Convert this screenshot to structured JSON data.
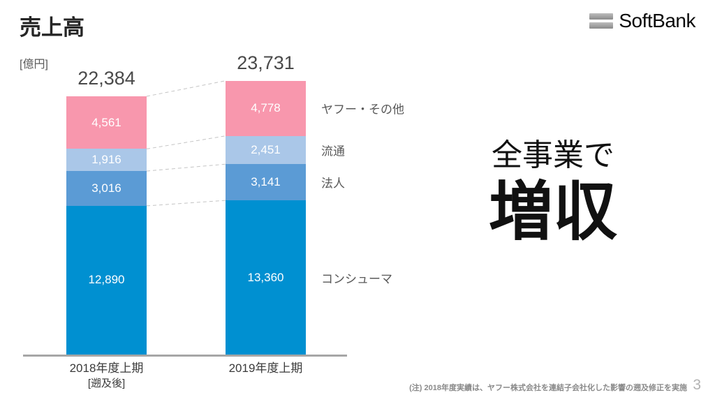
{
  "title": "売上高",
  "unit_label": "[億円]",
  "logo": {
    "text": "SoftBank"
  },
  "headline": {
    "line1": "全事業で",
    "line2": "増収"
  },
  "footnote": "(注) 2018年度実績は、ヤフー株式会社を連結子会社化した影響の遡及修正を実施",
  "page_number": "3",
  "chart_data": {
    "type": "bar",
    "stacked": true,
    "title": "売上高",
    "ylabel": "億円",
    "legend_position": "right-of-bars",
    "grid": false,
    "categories": [
      "2018年度上期",
      "2019年度上期"
    ],
    "category_sublabels": [
      "[遡及後]",
      ""
    ],
    "totals": [
      22384,
      23731
    ],
    "totals_display": [
      "22,384",
      "23,731"
    ],
    "series_bottom_to_top": [
      {
        "name": "コンシューマ",
        "color": "#0090d1",
        "values": [
          12890,
          13360
        ]
      },
      {
        "name": "法人",
        "color": "#5b9bd5",
        "values": [
          3016,
          3141
        ]
      },
      {
        "name": "流通",
        "color": "#aac7e8",
        "values": [
          1916,
          2451
        ]
      },
      {
        "name": "ヤフー・その他",
        "color": "#f897ad",
        "values": [
          4561,
          4778
        ]
      }
    ]
  }
}
